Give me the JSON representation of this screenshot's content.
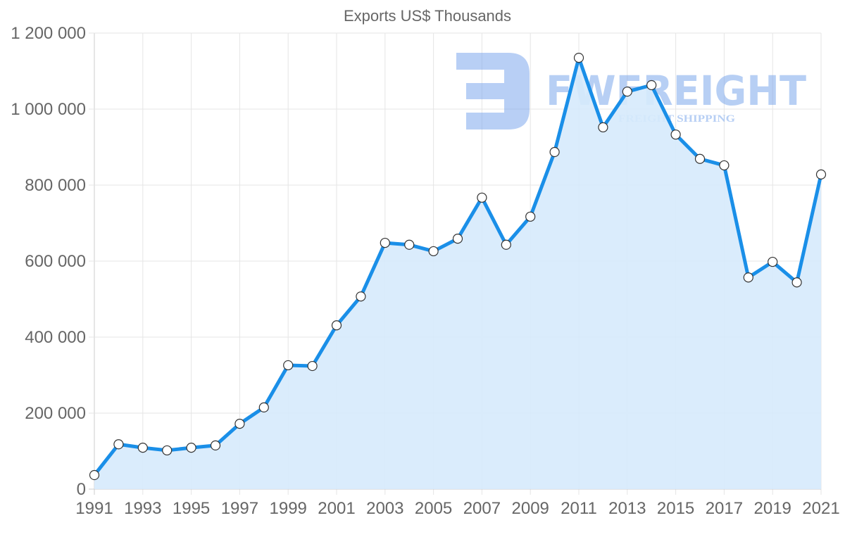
{
  "chart_data": {
    "type": "line",
    "title": "Exports US$ Thousands",
    "xlabel": "",
    "ylabel": "",
    "ylim": [
      0,
      1200000
    ],
    "yticks": [
      0,
      200000,
      400000,
      600000,
      800000,
      1000000,
      1200000
    ],
    "ytick_labels": [
      "0",
      "200 000",
      "400 000",
      "600 000",
      "800 000",
      "1 000 000",
      "1 200 000"
    ],
    "xtick_labels": [
      "1991",
      "1993",
      "1995",
      "1997",
      "1999",
      "2001",
      "2003",
      "2005",
      "2007",
      "2009",
      "2011",
      "2013",
      "2015",
      "2017",
      "2019",
      "2021"
    ],
    "grid": true,
    "legend": "none",
    "fill": true,
    "line_color": "#1a8fe8",
    "fill_color": "#d6eafc",
    "x": [
      1991,
      1992,
      1993,
      1994,
      1995,
      1996,
      1997,
      1998,
      1999,
      2000,
      2001,
      2002,
      2003,
      2004,
      2005,
      2006,
      2007,
      2008,
      2009,
      2010,
      2011,
      2012,
      2013,
      2014,
      2015,
      2016,
      2017,
      2018,
      2019,
      2020,
      2021
    ],
    "series": [
      {
        "name": "Exports US$ Thousands",
        "values": [
          37000,
          118000,
          109000,
          102000,
          109000,
          115000,
          172000,
          215000,
          326000,
          324000,
          431000,
          507000,
          648000,
          643000,
          626000,
          659000,
          767000,
          643000,
          717000,
          887000,
          1135000,
          952000,
          1046000,
          1063000,
          933000,
          869000,
          852000,
          557000,
          598000,
          544000,
          828000
        ]
      }
    ]
  },
  "watermark": {
    "brand": "FWFREIGHT",
    "tagline": "FREIGHT SHIPPING",
    "color": "#7ea8ec"
  }
}
